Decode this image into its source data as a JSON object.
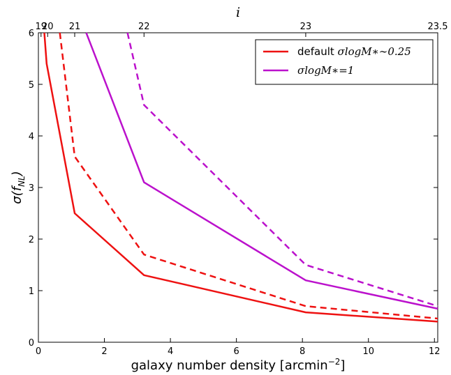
{
  "chart_data": {
    "type": "line",
    "xlabel_text": "galaxy number density [arcmin",
    "xlabel_exp": "−2",
    "xlabel_close": "]",
    "ylabel_main": "σ(f",
    "ylabel_sub": "NL",
    "ylabel_close": ")",
    "top_label": "i",
    "xlim": [
      0,
      12.1
    ],
    "ylim": [
      0,
      6
    ],
    "x_ticks": [
      0,
      2,
      4,
      6,
      8,
      10,
      12
    ],
    "y_ticks": [
      0,
      1,
      2,
      3,
      4,
      5,
      6
    ],
    "top_ticks": [
      {
        "label": "19",
        "x": 0.08
      },
      {
        "label": "20",
        "x": 0.28
      },
      {
        "label": "21",
        "x": 1.1
      },
      {
        "label": "22",
        "x": 3.2
      },
      {
        "label": "23",
        "x": 8.1
      },
      {
        "label": "23.5",
        "x": 12.1
      }
    ],
    "series": [
      {
        "key": "red-solid",
        "color": "#ee1111",
        "dashed": false,
        "x": [
          0.18,
          0.25,
          1.1,
          3.2,
          8.1,
          12.1
        ],
        "y": [
          6.0,
          5.4,
          2.5,
          1.3,
          0.58,
          0.4
        ]
      },
      {
        "key": "red-dashed",
        "color": "#ee1111",
        "dashed": true,
        "x": [
          0.65,
          1.1,
          3.2,
          8.1,
          12.1
        ],
        "y": [
          6.0,
          3.6,
          1.7,
          0.7,
          0.46
        ]
      },
      {
        "key": "magenta-solid",
        "color": "#bb11cc",
        "dashed": false,
        "x": [
          1.45,
          3.2,
          8.1,
          12.1
        ],
        "y": [
          6.0,
          3.1,
          1.2,
          0.65
        ]
      },
      {
        "key": "magenta-dashed",
        "color": "#bb11cc",
        "dashed": true,
        "x": [
          2.7,
          3.2,
          8.1,
          12.1
        ],
        "y": [
          6.0,
          4.6,
          1.5,
          0.7
        ]
      }
    ],
    "legend": {
      "placement": "top-right",
      "entries": [
        {
          "color": "#ee1111",
          "text": "default ",
          "math": "σlogM∗∼0.25"
        },
        {
          "color": "#bb11cc",
          "text": "",
          "math": "σlogM∗=1"
        }
      ]
    }
  }
}
